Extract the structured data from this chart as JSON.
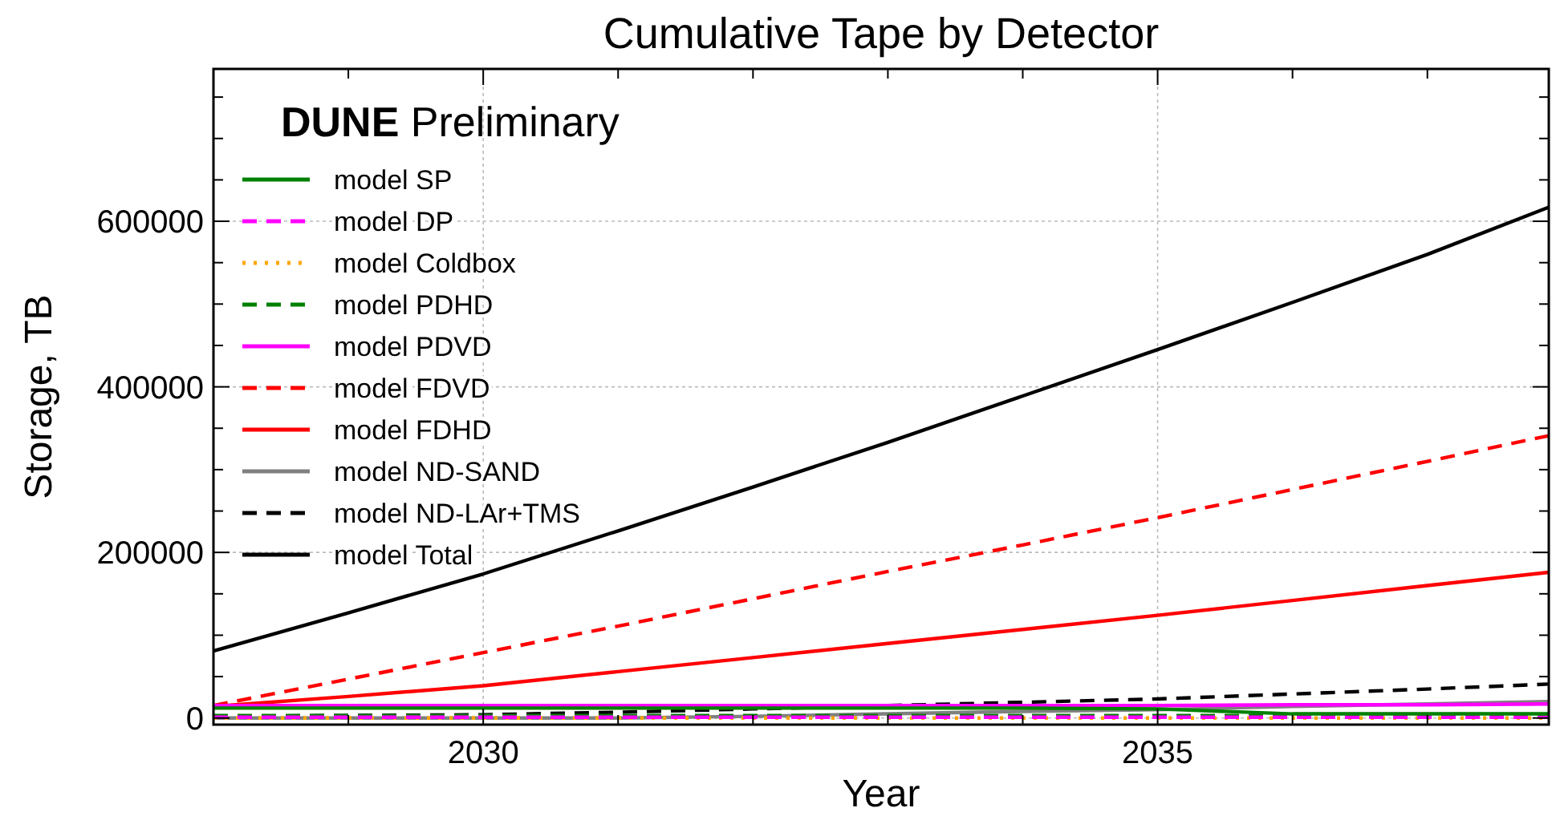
{
  "chart_data": {
    "type": "line",
    "title": "Cumulative Tape by Detector",
    "xlabel": "Year",
    "ylabel": "Storage, TB",
    "annotations": [
      "DUNE Preliminary"
    ],
    "x": [
      2028,
      2029,
      2030,
      2031,
      2032,
      2033,
      2034,
      2035,
      2036,
      2037,
      2037.9
    ],
    "xlim": [
      2028,
      2037.9
    ],
    "xticks": [
      {
        "value": 2029,
        "label": null
      },
      2030,
      {
        "value": 2031,
        "label": null
      },
      {
        "value": 2032,
        "label": null
      },
      {
        "value": 2033,
        "label": null
      },
      {
        "value": 2034,
        "label": null
      },
      2035,
      {
        "value": 2036,
        "label": null
      },
      {
        "value": 2037,
        "label": null
      }
    ],
    "ylim": [
      -8000,
      784000
    ],
    "yticks": [
      0,
      {
        "value": 50000,
        "label": null
      },
      {
        "value": 100000,
        "label": null
      },
      {
        "value": 150000,
        "label": null
      },
      200000,
      {
        "value": 250000,
        "label": null
      },
      {
        "value": 300000,
        "label": null
      },
      {
        "value": 350000,
        "label": null
      },
      400000,
      {
        "value": 450000,
        "label": null
      },
      {
        "value": 500000,
        "label": null
      },
      {
        "value": 550000,
        "label": null
      },
      600000,
      {
        "value": 650000,
        "label": null
      },
      {
        "value": 700000,
        "label": null
      },
      {
        "value": 750000,
        "label": null
      }
    ],
    "grid": true,
    "legend": "top left",
    "series": [
      {
        "name": "model SP",
        "color": "#008000",
        "line_style": "solid",
        "values": [
          12000,
          12000,
          12000,
          12000,
          12000,
          12000,
          12000,
          11000,
          5000,
          5000,
          5000
        ]
      },
      {
        "name": "model DP",
        "color": "#ff00ff",
        "line_style": "dashed",
        "values": [
          1000,
          1000,
          1000,
          1000,
          1000,
          1000,
          1000,
          1000,
          1000,
          1000,
          1000
        ]
      },
      {
        "name": "model Coldbox",
        "color": "#ffa500",
        "line_style": "dotted",
        "values": [
          0,
          0,
          0,
          0,
          0,
          0,
          0,
          0,
          0,
          0,
          0
        ]
      },
      {
        "name": "model PDHD",
        "color": "#008000",
        "line_style": "dashed",
        "values": [
          3000,
          3000,
          3000,
          3000,
          3000,
          3000,
          3000,
          3000,
          3000,
          3000,
          3000
        ]
      },
      {
        "name": "model PDVD",
        "color": "#ff00ff",
        "line_style": "solid",
        "values": [
          15000,
          15000,
          15000,
          15000,
          15000,
          15000,
          15000,
          15000,
          16000,
          16000,
          17000
        ]
      },
      {
        "name": "model FDVD",
        "color": "#ff0000",
        "line_style": "dashed",
        "values": [
          15000,
          47000,
          79000,
          111000,
          144000,
          177000,
          209000,
          242000,
          276000,
          310000,
          341000
        ]
      },
      {
        "name": "model FDHD",
        "color": "#ff0000",
        "line_style": "solid",
        "values": [
          14000,
          26000,
          39000,
          56000,
          73000,
          90000,
          107000,
          124000,
          142000,
          160000,
          176000
        ]
      },
      {
        "name": "model ND-SAND",
        "color": "#808080",
        "line_style": "solid",
        "values": [
          0,
          0,
          0,
          0,
          2000,
          5000,
          8000,
          10000,
          14000,
          17000,
          20000
        ]
      },
      {
        "name": "model ND-LAr+TMS",
        "color": "#000000",
        "line_style": "dashed",
        "values": [
          2000,
          3000,
          4000,
          7000,
          11000,
          15000,
          19000,
          23000,
          29000,
          35000,
          41000
        ]
      },
      {
        "name": "model Total",
        "color": "#000000",
        "line_style": "solid",
        "values": [
          81000,
          127000,
          174000,
          226000,
          279000,
          333000,
          389000,
          445000,
          502000,
          560000,
          617000
        ]
      }
    ]
  }
}
